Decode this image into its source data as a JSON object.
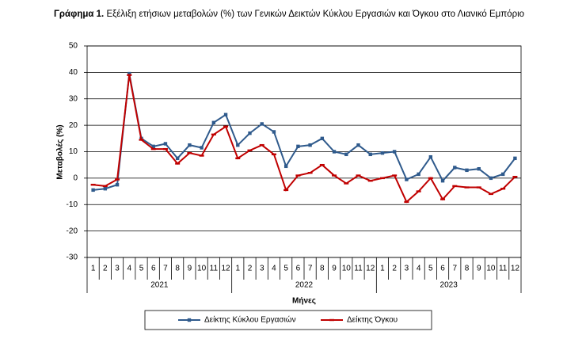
{
  "chart_data": {
    "type": "line",
    "title_prefix": "Γράφημα 1.",
    "title": "Εξέλιξη ετήσιων μεταβολών (%) των Γενικών Δεικτών Κύκλου Εργασιών και Όγκου στο Λιανικό Εμπόριο",
    "y_label": "Μεταβολές (%)",
    "x_label": "Μήνες",
    "categories": [
      "1",
      "2",
      "3",
      "4",
      "5",
      "6",
      "7",
      "8",
      "9",
      "10",
      "11",
      "12",
      "1",
      "2",
      "3",
      "4",
      "5",
      "6",
      "7",
      "8",
      "9",
      "10",
      "11",
      "12",
      "1",
      "2",
      "3",
      "4",
      "5",
      "6",
      "7",
      "8",
      "9",
      "10",
      "11",
      "12"
    ],
    "groups": [
      "2021",
      "2022",
      "2023"
    ],
    "series": [
      {
        "name": "Δείκτης Κύκλου Εργασιών",
        "color": "#2f5a8c",
        "marker": "square",
        "values": [
          -4.5,
          -4,
          -2.5,
          39.5,
          15,
          12,
          13,
          7.5,
          12.5,
          11.5,
          21,
          24,
          12.5,
          17,
          20.5,
          17.5,
          4.5,
          12,
          12.5,
          15,
          10,
          9,
          12.5,
          9,
          9.5,
          10,
          -0.5,
          1.5,
          8,
          -1,
          4,
          3,
          3.5,
          0,
          1.5,
          7.5
        ]
      },
      {
        "name": "Δείκτης Όγκου",
        "color": "#c00000",
        "marker": "dash",
        "values": [
          -2.5,
          -3,
          -0.5,
          39,
          14.5,
          11,
          11,
          5.5,
          9.5,
          8.5,
          16.5,
          19.5,
          7.5,
          10.5,
          12.5,
          9,
          -4.5,
          1,
          2,
          5,
          1,
          -2,
          1,
          -1,
          0,
          1,
          -9,
          -5,
          0,
          -8,
          -3,
          -3.5,
          -3.5,
          -6,
          -4,
          0.5
        ]
      }
    ],
    "ylim": [
      -30,
      50
    ],
    "yticks": [
      -30,
      -20,
      -10,
      0,
      10,
      20,
      30,
      40,
      50
    ],
    "grid": true,
    "legend": "bottom"
  }
}
